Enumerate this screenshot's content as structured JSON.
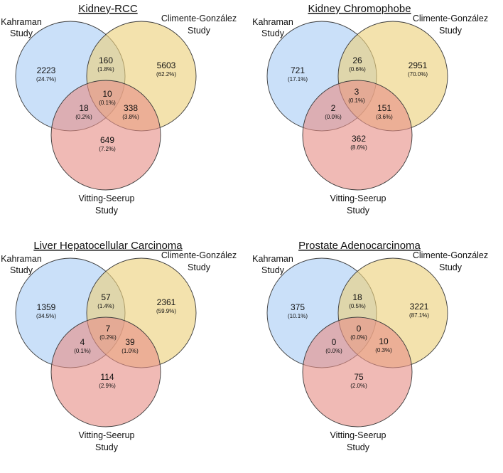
{
  "colors": {
    "set_a": "#a9cdf5",
    "set_b": "#ecd07a",
    "set_c": "#e78f88",
    "stroke": "#3a3a3a"
  },
  "set_labels": {
    "a_line1": "Kahraman",
    "a_line2": "Study",
    "b_line1": "Climente-González",
    "b_line2": "Study",
    "c_line1": "Vitting-Seerup",
    "c_line2": "Study"
  },
  "panels": [
    {
      "title": "Kidney-RCC",
      "regions": {
        "a_only": {
          "count": "2223",
          "pct": "(24.7%)"
        },
        "ab": {
          "count": "160",
          "pct": "(1.8%)"
        },
        "b_only": {
          "count": "5603",
          "pct": "(62.2%)"
        },
        "abc": {
          "count": "10",
          "pct": "(0.1%)"
        },
        "ac": {
          "count": "18",
          "pct": "(0.2%)"
        },
        "bc": {
          "count": "338",
          "pct": "(3.8%)"
        },
        "c_only": {
          "count": "649",
          "pct": "(7.2%)"
        }
      }
    },
    {
      "title": "Kidney Chromophobe",
      "regions": {
        "a_only": {
          "count": "721",
          "pct": "(17.1%)"
        },
        "ab": {
          "count": "26",
          "pct": "(0.6%)"
        },
        "b_only": {
          "count": "2951",
          "pct": "(70.0%)"
        },
        "abc": {
          "count": "3",
          "pct": "(0.1%)"
        },
        "ac": {
          "count": "2",
          "pct": "(0.0%)"
        },
        "bc": {
          "count": "151",
          "pct": "(3.6%)"
        },
        "c_only": {
          "count": "362",
          "pct": "(8.6%)"
        }
      }
    },
    {
      "title": "Liver Hepatocellular Carcinoma",
      "regions": {
        "a_only": {
          "count": "1359",
          "pct": "(34.5%)"
        },
        "ab": {
          "count": "57",
          "pct": "(1.4%)"
        },
        "b_only": {
          "count": "2361",
          "pct": "(59.9%)"
        },
        "abc": {
          "count": "7",
          "pct": "(0.2%)"
        },
        "ac": {
          "count": "4",
          "pct": "(0.1%)"
        },
        "bc": {
          "count": "39",
          "pct": "(1.0%)"
        },
        "c_only": {
          "count": "114",
          "pct": "(2.9%)"
        }
      }
    },
    {
      "title": "Prostate Adenocarcinoma",
      "regions": {
        "a_only": {
          "count": "375",
          "pct": "(10.1%)"
        },
        "ab": {
          "count": "18",
          "pct": "(0.5%)"
        },
        "b_only": {
          "count": "3221",
          "pct": "(87.1%)"
        },
        "abc": {
          "count": "0",
          "pct": "(0.0%)"
        },
        "ac": {
          "count": "0",
          "pct": "(0.0%)"
        },
        "bc": {
          "count": "10",
          "pct": "(0.3%)"
        },
        "c_only": {
          "count": "75",
          "pct": "(2.0%)"
        }
      }
    }
  ]
}
